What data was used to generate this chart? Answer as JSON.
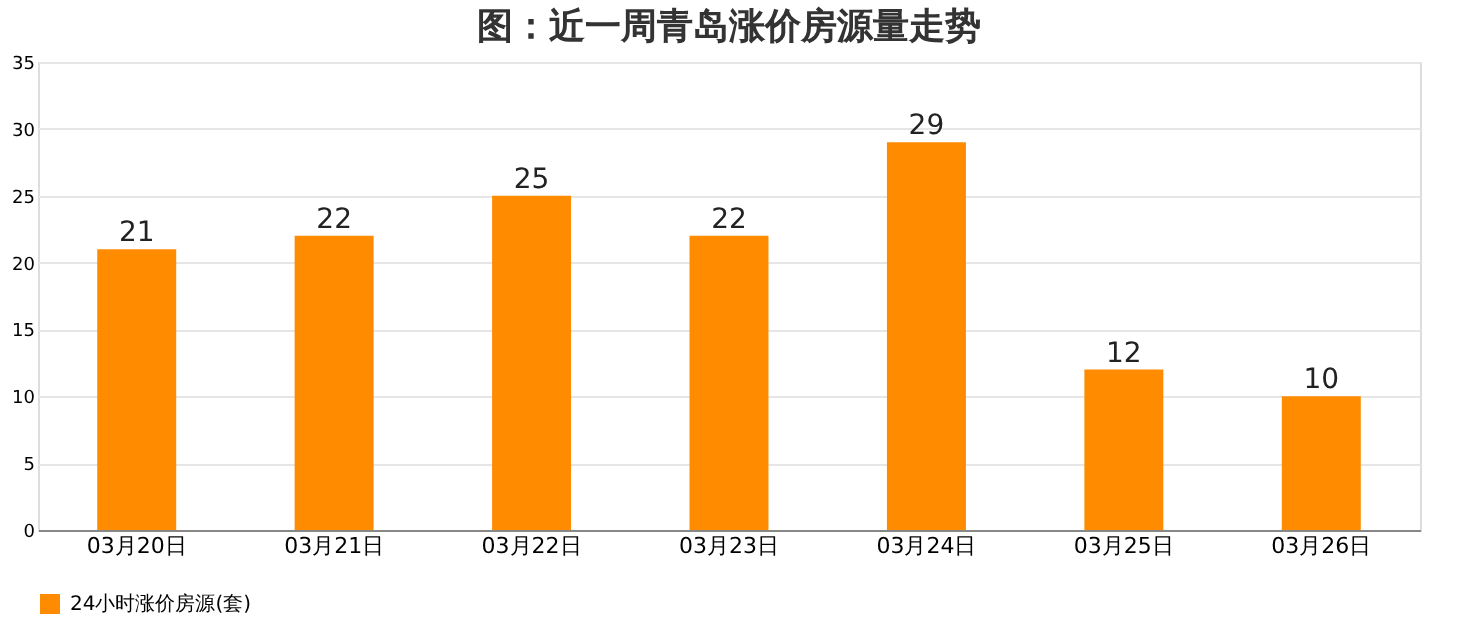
{
  "chart_data": {
    "type": "bar",
    "title": "图：近一周青岛涨价房源量走势",
    "categories": [
      "03月20日",
      "03月21日",
      "03月22日",
      "03月23日",
      "03月24日",
      "03月25日",
      "03月26日"
    ],
    "series": [
      {
        "name": "24小时涨价房源(套)",
        "color": "#ff8c00",
        "values": [
          21,
          22,
          25,
          22,
          29,
          12,
          10
        ]
      }
    ],
    "ylim": [
      0,
      35
    ],
    "yticks": [
      0,
      5,
      10,
      15,
      20,
      25,
      30,
      35
    ],
    "grid": "y",
    "legend": "bottom",
    "data_labels": true
  }
}
